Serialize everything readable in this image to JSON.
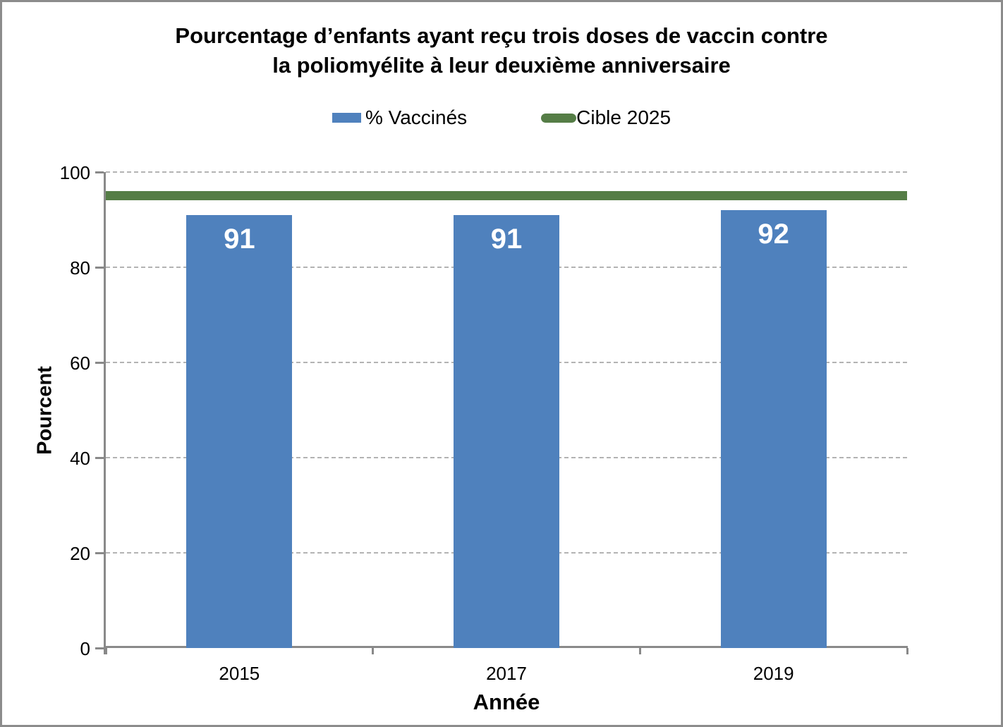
{
  "title_lines": [
    "Pourcentage d’enfants ayant reçu trois doses de vaccin contre",
    "la poliomyélite à leur deuxième anniversaire"
  ],
  "legend": [
    {
      "label": "% Vaccinés",
      "swatch": "bar",
      "color": "#4F81BD"
    },
    {
      "label": "Cible 2025",
      "swatch": "line",
      "color": "#557D46"
    }
  ],
  "chart_data": {
    "type": "bar",
    "title": "Pourcentage d’enfants ayant reçu trois doses de vaccin contre la poliomyélite à leur deuxième anniversaire",
    "categories": [
      "2015",
      "2017",
      "2019"
    ],
    "series": [
      {
        "name": "% Vaccinés",
        "type": "bar",
        "values": [
          91,
          91,
          92
        ],
        "color": "#4F81BD"
      },
      {
        "name": "Cible 2025",
        "type": "line",
        "values": [
          95,
          95,
          95
        ],
        "color": "#557D46"
      }
    ],
    "bar_labels": [
      "91",
      "91",
      "92"
    ],
    "xlabel": "Année",
    "ylabel": "Pourcent",
    "ylim": [
      0,
      100
    ],
    "yticks": [
      0,
      20,
      40,
      60,
      80,
      100
    ],
    "grid": true,
    "legend_position": "top"
  },
  "colors": {
    "bar": "#4F81BD",
    "target_line": "#557D46",
    "axis": "#898989",
    "gridline": "#B3B3B3",
    "bar_label_text": "#FFFFFF",
    "text": "#000000",
    "frame_border": "#8C8C8C",
    "background": "#FFFFFF"
  }
}
